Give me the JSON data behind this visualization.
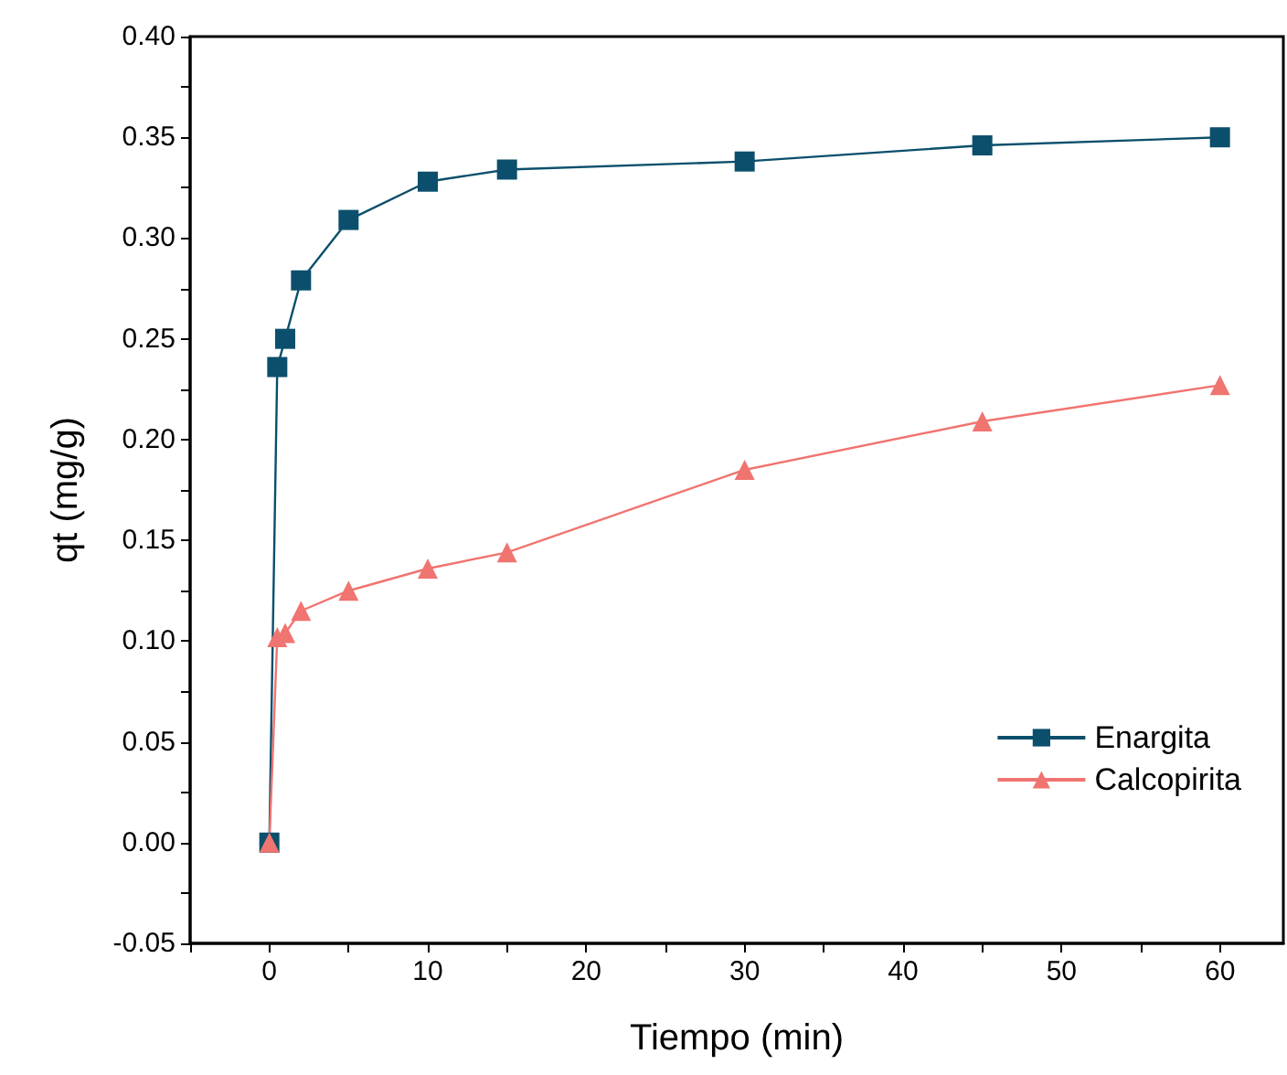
{
  "chart_data": {
    "type": "line",
    "xlabel": "Tiempo (min)",
    "ylabel": "qt (mg/g)",
    "xlim": [
      -5,
      64
    ],
    "ylim": [
      -0.05,
      0.4
    ],
    "xticks": [
      {
        "value": -5,
        "label": null
      },
      0,
      {
        "value": 5,
        "label": null
      },
      10,
      {
        "value": 15,
        "label": null
      },
      20,
      {
        "value": 25,
        "label": null
      },
      30,
      {
        "value": 35,
        "label": null
      },
      40,
      {
        "value": 45,
        "label": null
      },
      50,
      {
        "value": 55,
        "label": null
      },
      60
    ],
    "yticks": [
      {
        "value": -0.05,
        "label": "-0.05"
      },
      {
        "value": -0.025,
        "label": null
      },
      {
        "value": 0,
        "label": "0.00"
      },
      {
        "value": 0.025,
        "label": null
      },
      {
        "value": 0.05,
        "label": "0.05"
      },
      {
        "value": 0.075,
        "label": null
      },
      {
        "value": 0.1,
        "label": "0.10"
      },
      {
        "value": 0.125,
        "label": null
      },
      {
        "value": 0.15,
        "label": "0.15"
      },
      {
        "value": 0.175,
        "label": null
      },
      {
        "value": 0.2,
        "label": "0.20"
      },
      {
        "value": 0.225,
        "label": null
      },
      {
        "value": 0.25,
        "label": "0.25"
      },
      {
        "value": 0.275,
        "label": null
      },
      {
        "value": 0.3,
        "label": "0.30"
      },
      {
        "value": 0.325,
        "label": null
      },
      {
        "value": 0.35,
        "label": "0.35"
      },
      {
        "value": 0.375,
        "label": null
      },
      {
        "value": 0.4,
        "label": "0.40"
      }
    ],
    "x": [
      0,
      0.5,
      1,
      2,
      5,
      10,
      15,
      30,
      45,
      60
    ],
    "series": [
      {
        "name": "Enargita",
        "color": "#0b4f6c",
        "marker": "square",
        "values": [
          0,
          0.236,
          0.25,
          0.279,
          0.309,
          0.328,
          0.334,
          0.338,
          0.346,
          0.35
        ]
      },
      {
        "name": "Calcopirita",
        "color": "#f07470",
        "marker": "triangle",
        "values": [
          0,
          0.102,
          0.104,
          0.115,
          0.125,
          0.136,
          0.144,
          0.185,
          0.209,
          0.227
        ]
      }
    ],
    "grid": false,
    "legend": "right",
    "line_style": "solid"
  }
}
